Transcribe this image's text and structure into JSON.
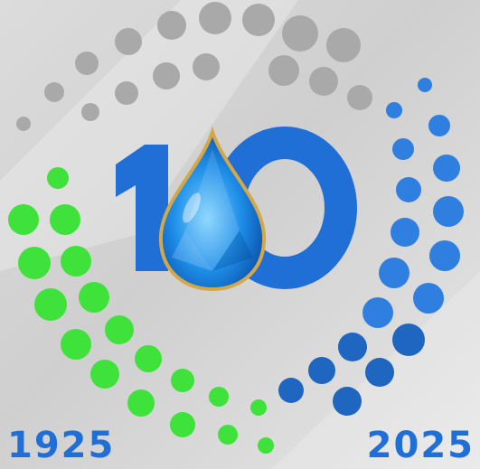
{
  "emblem": {
    "digit_one": "1",
    "digit_zero": "0",
    "drop": "water-drop-gem"
  },
  "years": {
    "start": "1925",
    "end": "2025"
  },
  "colors": {
    "gray_dots": "#a9a9a9",
    "green_dots": "#3ee23a",
    "blue_dots": "#2f7fe0",
    "dark_blue_dots": "#1e66bf",
    "numerals": "#1f6fd6",
    "drop": "#1e8ee8",
    "drop_rim": "#d4a84a"
  }
}
